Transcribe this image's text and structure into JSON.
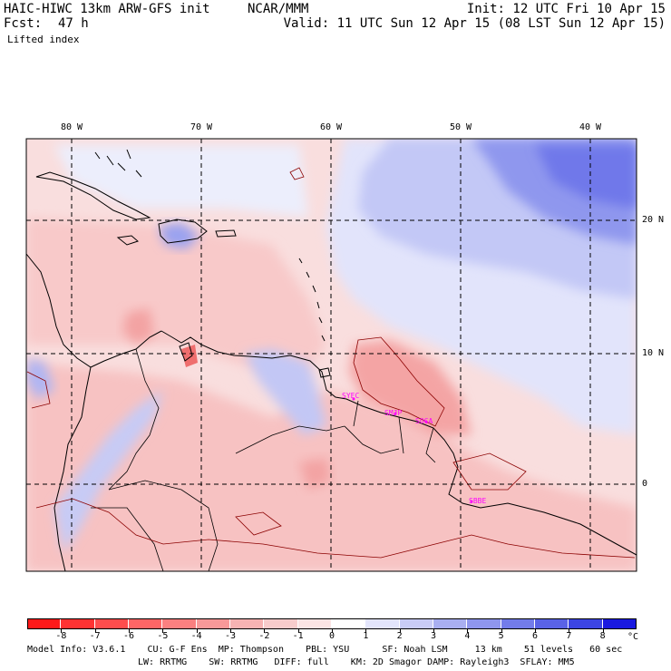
{
  "header": {
    "model_line": "HAIC-HIWC 13km ARW-GFS init",
    "org": "NCAR/MMM",
    "init_line": "Init: 12 UTC Fri 10 Apr 15",
    "fcst_label": "Fcst:",
    "fcst_value": "47 h",
    "valid_line": "Valid: 11 UTC Sun 12 Apr 15 (08 LST Sun 12 Apr 15)",
    "field": "Lifted index"
  },
  "map": {
    "lon_labels": [
      "80 W",
      "70 W",
      "60 W",
      "50 W",
      "40 W"
    ],
    "lat_labels": [
      "20 N",
      "10 N",
      "0"
    ],
    "stations": [
      "SYEC",
      "SMJP",
      "SOCA",
      "SBBE"
    ],
    "colors": {
      "land_pink": "#fbd0d0",
      "pink_mid": "#f7a8a8",
      "blue_light": "#d9dcfb",
      "blue_mid": "#a9b0f3",
      "blue_deep": "#6f78ea",
      "coast": "#000000",
      "station": "#ff00ff"
    }
  },
  "colorbar": {
    "labels": [
      "-8",
      "-7",
      "-6",
      "-5",
      "-4",
      "-3",
      "-2",
      "-1",
      "0",
      "1",
      "2",
      "3",
      "4",
      "5",
      "6",
      "7",
      "8"
    ],
    "unit": "°C",
    "colors": [
      "#ff1a1a",
      "#ff3333",
      "#ff4d4d",
      "#ff6666",
      "#fb8080",
      "#f89999",
      "#f7b3b3",
      "#f8cccc",
      "#fbe4e4",
      "#ffffff",
      "#e3e5fb",
      "#c9ccf6",
      "#a9aff1",
      "#8f96ee",
      "#737cea",
      "#5a63e6",
      "#3c45e3",
      "#1a1ae0"
    ]
  },
  "footer": {
    "line1": "Model Info: V3.6.1    CU: G-F Ens  MP: Thompson    PBL: YSU      SF: Noah LSM     13 km    51 levels   60 sec",
    "line2": "LW: RRTMG    SW: RRTMG   DIFF: full    KM: 2D Smagor DAMP: Rayleigh3  SFLAY: MM5"
  }
}
